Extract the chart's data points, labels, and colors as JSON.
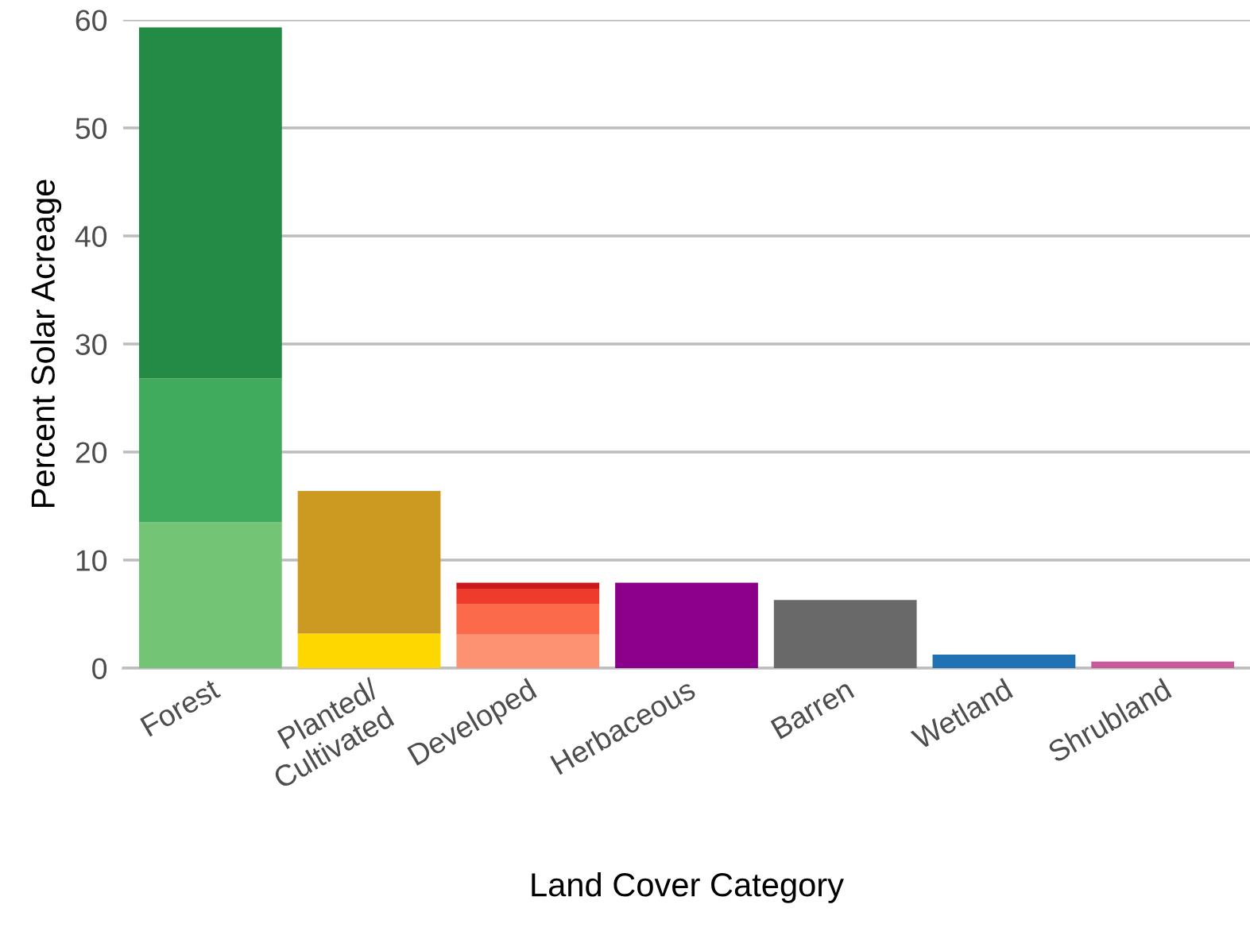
{
  "chart_data": {
    "type": "bar",
    "stacked": true,
    "xlabel": "Land Cover Category",
    "ylabel": "Percent Solar Acreage",
    "categories": [
      "Forest",
      "Planted/\nCultivated",
      "Developed",
      "Herbaceous",
      "Barren",
      "Wetland",
      "Shrubland"
    ],
    "series": [
      {
        "colors": [
          "#74c476",
          "#ffd700",
          "#fc9272",
          "#8b008b",
          "#696969",
          "#2171b5",
          "#c85a9b"
        ],
        "values": [
          13.5,
          3.2,
          3.1,
          7.9,
          6.3,
          1.25,
          0.6
        ]
      },
      {
        "colors": [
          "#41ab5d",
          "#cc9a20",
          "#fb6a4a",
          null,
          null,
          null,
          null
        ],
        "values": [
          13.3,
          13.2,
          2.85,
          null,
          null,
          null,
          null
        ]
      },
      {
        "colors": [
          "#238b45",
          null,
          "#ef3b2c",
          null,
          null,
          null,
          null
        ],
        "values": [
          32.5,
          null,
          1.4,
          null,
          null,
          null,
          null
        ]
      },
      {
        "colors": [
          null,
          null,
          "#cb181d",
          null,
          null,
          null,
          null
        ],
        "values": [
          null,
          null,
          0.55,
          null,
          null,
          null,
          null
        ]
      }
    ],
    "ylim": [
      0,
      60
    ],
    "yticks": [
      0,
      10,
      20,
      30,
      40,
      50,
      60
    ],
    "grid": "y"
  }
}
